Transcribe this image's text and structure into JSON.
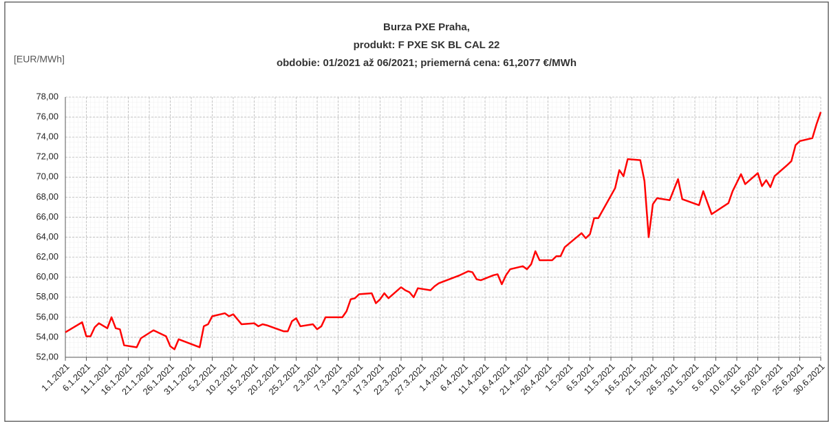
{
  "chart_data": {
    "type": "line",
    "title": [
      "Burza PXE Praha,",
      "produkt:  F PXE SK BL CAL 22",
      "obdobie: 01/2021 až 06/2021; priemerná cena: 61,2077 €/MWh"
    ],
    "y_axis_label": "[EUR/MWh]",
    "x": [
      "1.1.2021",
      "5.1.2021",
      "6.1.2021",
      "7.1.2021",
      "8.1.2021",
      "9.1.2021",
      "11.1.2021",
      "12.1.2021",
      "13.1.2021",
      "14.1.2021",
      "15.1.2021",
      "18.1.2021",
      "19.1.2021",
      "22.1.2021",
      "25.1.2021",
      "26.1.2021",
      "27.1.2021",
      "28.1.2021",
      "2.2.2021",
      "3.2.2021",
      "4.2.2021",
      "5.2.2021",
      "8.2.2021",
      "9.2.2021",
      "10.2.2021",
      "12.2.2021",
      "15.2.2021",
      "16.2.2021",
      "17.2.2021",
      "18.2.2021",
      "22.2.2021",
      "23.2.2021",
      "24.2.2021",
      "25.2.2021",
      "26.2.2021",
      "1.3.2021",
      "2.3.2021",
      "3.3.2021",
      "4.3.2021",
      "8.3.2021",
      "9.3.2021",
      "10.3.2021",
      "11.3.2021",
      "12.3.2021",
      "15.3.2021",
      "16.3.2021",
      "17.3.2021",
      "18.3.2021",
      "19.3.2021",
      "22.3.2021",
      "23.3.2021",
      "24.3.2021",
      "25.3.2021",
      "26.3.2021",
      "29.3.2021",
      "30.3.2021",
      "31.3.2021",
      "5.4.2021",
      "7.4.2021",
      "8.4.2021",
      "9.4.2021",
      "10.4.2021",
      "13.4.2021",
      "14.4.2021",
      "15.4.2021",
      "16.4.2021",
      "17.4.2021",
      "20.4.2021",
      "21.4.2021",
      "22.4.2021",
      "23.4.2021",
      "24.4.2021",
      "27.4.2021",
      "28.4.2021",
      "29.4.2021",
      "30.4.2021",
      "4.5.2021",
      "5.5.2021",
      "6.5.2021",
      "7.5.2021",
      "8.5.2021",
      "12.5.2021",
      "13.5.2021",
      "14.5.2021",
      "15.5.2021",
      "18.5.2021",
      "19.5.2021",
      "20.5.2021",
      "21.5.2021",
      "22.5.2021",
      "25.5.2021",
      "27.5.2021",
      "28.5.2021",
      "1.6.2021",
      "2.6.2021",
      "4.6.2021",
      "8.6.2021",
      "9.6.2021",
      "11.6.2021",
      "12.6.2021",
      "15.6.2021",
      "16.6.2021",
      "17.6.2021",
      "18.6.2021",
      "19.6.2021",
      "22.6.2021",
      "23.6.2021",
      "24.6.2021",
      "25.6.2021",
      "28.6.2021",
      "29.6.2021",
      "30.6.2021"
    ],
    "series": [
      {
        "color": "#ff0000",
        "values": [
          54.5,
          55.5,
          54.1,
          54.1,
          55.0,
          55.4,
          54.9,
          56.0,
          54.9,
          54.8,
          53.2,
          53.0,
          53.9,
          54.7,
          54.1,
          53.1,
          52.8,
          53.8,
          53.0,
          55.1,
          55.3,
          56.1,
          56.4,
          56.1,
          56.3,
          55.3,
          55.4,
          55.1,
          55.3,
          55.2,
          54.6,
          54.6,
          55.6,
          55.9,
          55.1,
          55.3,
          54.8,
          55.1,
          56.0,
          56.0,
          56.6,
          57.8,
          57.9,
          58.3,
          58.4,
          57.4,
          57.8,
          58.4,
          57.9,
          59.0,
          58.7,
          58.5,
          58.0,
          58.9,
          58.7,
          59.1,
          59.4,
          60.2,
          60.6,
          60.5,
          59.8,
          59.7,
          60.2,
          60.3,
          59.3,
          60.2,
          60.8,
          61.1,
          60.8,
          61.3,
          62.6,
          61.7,
          61.7,
          62.1,
          62.1,
          63.0,
          64.4,
          63.9,
          64.3,
          65.9,
          65.9,
          68.9,
          70.7,
          70.1,
          71.8,
          71.7,
          69.6,
          64.0,
          67.3,
          67.9,
          67.7,
          69.8,
          67.8,
          67.2,
          68.6,
          66.3,
          67.4,
          68.6,
          70.3,
          69.3,
          70.4,
          69.1,
          69.7,
          69.0,
          70.1,
          71.2,
          71.6,
          73.2,
          73.6,
          73.9,
          75.3,
          76.5
        ]
      }
    ],
    "xticks": [
      "1.1.2021",
      "6.1.2021",
      "11.1.2021",
      "16.1.2021",
      "21.1.2021",
      "26.1.2021",
      "31.1.2021",
      "5.2.2021",
      "10.2.2021",
      "15.2.2021",
      "20.2.2021",
      "25.2.2021",
      "2.3.2021",
      "7.3.2021",
      "12.3.2021",
      "17.3.2021",
      "22.3.2021",
      "27.3.2021",
      "1.4.2021",
      "6.4.2021",
      "11.4.2021",
      "16.4.2021",
      "21.4.2021",
      "26.4.2021",
      "1.5.2021",
      "6.5.2021",
      "11.5.2021",
      "16.5.2021",
      "21.5.2021",
      "26.5.2021",
      "31.5.2021",
      "5.6.2021",
      "10.6.2021",
      "15.6.2021",
      "20.6.2021",
      "25.6.2021",
      "30.6.2021"
    ],
    "ylim": [
      52,
      78
    ],
    "yticks": [
      {
        "value": 52,
        "label": "52,00"
      },
      {
        "value": 54,
        "label": "54,00"
      },
      {
        "value": 56,
        "label": "56,00"
      },
      {
        "value": 58,
        "label": "58,00"
      },
      {
        "value": 60,
        "label": "60,00"
      },
      {
        "value": 62,
        "label": "62,00"
      },
      {
        "value": 64,
        "label": "64,00"
      },
      {
        "value": 66,
        "label": "66,00"
      },
      {
        "value": 68,
        "label": "68,00"
      },
      {
        "value": 70,
        "label": "70,00"
      },
      {
        "value": 72,
        "label": "72,00"
      },
      {
        "value": 74,
        "label": "74,00"
      },
      {
        "value": 76,
        "label": "76,00"
      },
      {
        "value": 78,
        "label": "78,00"
      }
    ],
    "grid": true
  }
}
